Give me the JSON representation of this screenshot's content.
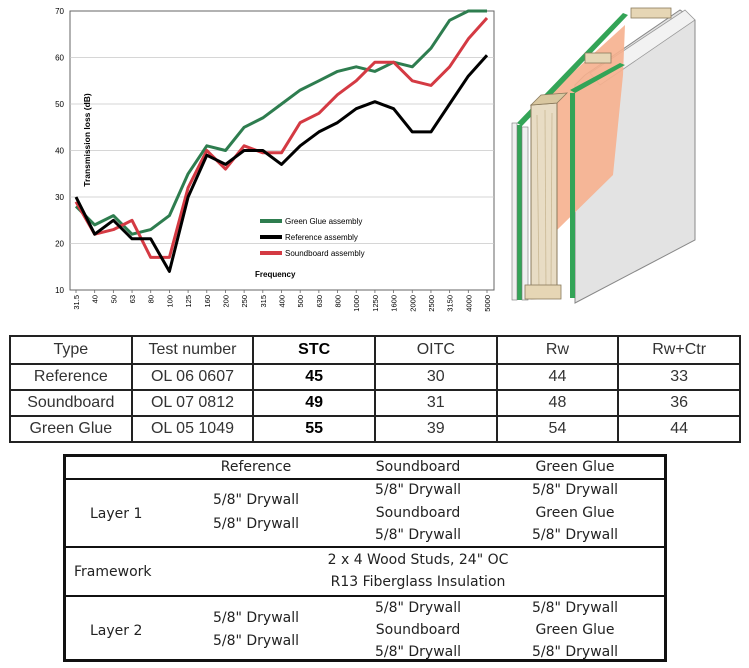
{
  "chart_data": {
    "type": "line",
    "ylabel": "Transmission loss (dB)",
    "xlabel": "Frequency",
    "ylim": [
      10,
      70
    ],
    "yticks": [
      10,
      20,
      30,
      40,
      50,
      60,
      70
    ],
    "categories": [
      "31.5",
      "40",
      "50",
      "63",
      "80",
      "100",
      "125",
      "160",
      "200",
      "250",
      "315",
      "400",
      "500",
      "630",
      "800",
      "1000",
      "1250",
      "1600",
      "2000",
      "2500",
      "3150",
      "4000",
      "5000"
    ],
    "grid": "horizontal",
    "legend": "inside-bottom-center",
    "series": [
      {
        "name": "Green Glue assembly",
        "color": "#2e7d4f",
        "values": [
          28,
          24,
          26,
          22,
          23,
          26,
          35,
          41,
          40,
          45,
          47,
          50,
          53,
          55,
          57,
          58,
          57,
          59,
          58,
          62,
          68,
          70,
          70
        ]
      },
      {
        "name": "Reference assembly",
        "color": "#000000",
        "values": [
          30,
          22,
          25,
          21,
          21,
          14,
          30,
          39,
          37,
          40,
          40,
          37,
          41,
          44,
          46,
          49,
          50.5,
          49,
          44,
          44,
          50,
          56,
          60.5
        ]
      },
      {
        "name": "Soundboard assembly",
        "color": "#d43a43",
        "values": [
          29,
          22,
          23,
          25,
          17,
          17,
          32,
          40,
          36,
          41,
          39.5,
          39.5,
          46,
          48,
          52,
          55,
          59,
          59,
          55,
          54,
          58,
          64,
          68.5
        ]
      }
    ]
  },
  "results_table": {
    "headers": [
      "Type",
      "Test number",
      "STC",
      "OITC",
      "Rw",
      "Rw+Ctr"
    ],
    "rows": [
      [
        "Reference",
        "OL 06 0607",
        "45",
        "30",
        "44",
        "33"
      ],
      [
        "Soundboard",
        "OL 07 0812",
        "49",
        "31",
        "48",
        "36"
      ],
      [
        "Green Glue",
        "OL 05 1049",
        "55",
        "39",
        "54",
        "44"
      ]
    ]
  },
  "materials_table": {
    "columns": [
      "Reference",
      "Soundboard",
      "Green Glue"
    ],
    "layer1": {
      "label": "Layer 1",
      "reference": [
        "5/8\" Drywall",
        "5/8\" Drywall"
      ],
      "soundboard": [
        "5/8\" Drywall",
        "Soundboard",
        "5/8\" Drywall"
      ],
      "greenglue": [
        "5/8\" Drywall",
        "Green Glue",
        "5/8\" Drywall"
      ]
    },
    "framework": {
      "label": "Framework",
      "lines": [
        "2 x 4 Wood Studs, 24\" OC",
        "R13 Fiberglass Insulation"
      ]
    },
    "layer2": {
      "label": "Layer 2",
      "reference": [
        "5/8\" Drywall",
        "5/8\" Drywall"
      ],
      "soundboard": [
        "5/8\" Drywall",
        "Soundboard",
        "5/8\" Drywall"
      ],
      "greenglue": [
        "5/8\" Drywall",
        "Green Glue",
        "5/8\" Drywall"
      ]
    }
  },
  "illustration": {
    "name": "wall-assembly-cutaway"
  }
}
